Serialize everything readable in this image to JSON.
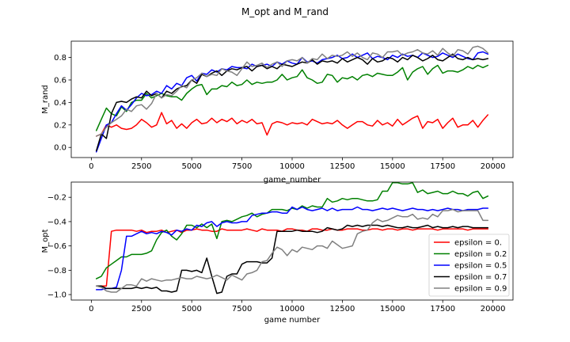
{
  "figure_title": "M_opt and M_rand",
  "chart_data": [
    {
      "type": "line",
      "title": "",
      "xlabel": "game_number",
      "ylabel": "M_rand",
      "xlim": [
        -1000,
        21000
      ],
      "ylim": [
        -0.09,
        0.945
      ],
      "xticks": [
        0,
        2500,
        5000,
        7500,
        10000,
        12500,
        15000,
        17500,
        20000
      ],
      "yticks": [
        0.0,
        0.2,
        0.4,
        0.6,
        0.8
      ],
      "xtick_labels": [
        "0",
        "2500",
        "5000",
        "7500",
        "10000",
        "12500",
        "15000",
        "17500",
        "20000"
      ],
      "ytick_labels": [
        "0.0",
        "0.2",
        "0.4",
        "0.6",
        "0.8"
      ],
      "grid": false,
      "legend": null,
      "x": [
        250,
        500,
        750,
        1000,
        1250,
        1500,
        1750,
        2000,
        2250,
        2500,
        2750,
        3000,
        3250,
        3500,
        3750,
        4000,
        4250,
        4500,
        4750,
        5000,
        5250,
        5500,
        5750,
        6000,
        6250,
        6500,
        6750,
        7000,
        7250,
        7500,
        7750,
        8000,
        8250,
        8500,
        8750,
        9000,
        9250,
        9500,
        9750,
        10000,
        10250,
        10500,
        10750,
        11000,
        11250,
        11500,
        11750,
        12000,
        12250,
        12500,
        12750,
        13000,
        13250,
        13500,
        13750,
        14000,
        14250,
        14500,
        14750,
        15000,
        15250,
        15500,
        15750,
        16000,
        16250,
        16500,
        16750,
        17000,
        17250,
        17500,
        17750,
        18000,
        18250,
        18500,
        18750,
        19000,
        19250,
        19500,
        19750
      ],
      "series": [
        {
          "color": "#ff0000",
          "values": [
            0.1,
            0.12,
            0.2,
            0.18,
            0.2,
            0.17,
            0.16,
            0.17,
            0.2,
            0.25,
            0.22,
            0.18,
            0.2,
            0.31,
            0.21,
            0.24,
            0.17,
            0.21,
            0.17,
            0.22,
            0.25,
            0.21,
            0.22,
            0.26,
            0.22,
            0.25,
            0.23,
            0.26,
            0.21,
            0.24,
            0.22,
            0.25,
            0.21,
            0.22,
            0.11,
            0.21,
            0.23,
            0.22,
            0.2,
            0.22,
            0.21,
            0.22,
            0.2,
            0.25,
            0.23,
            0.21,
            0.22,
            0.21,
            0.24,
            0.2,
            0.17,
            0.2,
            0.23,
            0.23,
            0.2,
            0.19,
            0.24,
            0.2,
            0.22,
            0.19,
            0.25,
            0.2,
            0.23,
            0.26,
            0.28,
            0.17,
            0.23,
            0.22,
            0.25,
            0.17,
            0.22,
            0.26,
            0.18,
            0.2,
            0.2,
            0.24,
            0.18,
            0.24,
            0.29
          ]
        },
        {
          "color": "#008000",
          "values": [
            0.15,
            0.25,
            0.35,
            0.3,
            0.28,
            0.36,
            0.32,
            0.4,
            0.42,
            0.42,
            0.48,
            0.44,
            0.46,
            0.48,
            0.46,
            0.45,
            0.45,
            0.42,
            0.48,
            0.52,
            0.55,
            0.56,
            0.47,
            0.52,
            0.52,
            0.55,
            0.54,
            0.58,
            0.55,
            0.56,
            0.6,
            0.56,
            0.58,
            0.57,
            0.58,
            0.58,
            0.6,
            0.65,
            0.6,
            0.62,
            0.63,
            0.69,
            0.62,
            0.6,
            0.57,
            0.58,
            0.65,
            0.64,
            0.58,
            0.62,
            0.61,
            0.63,
            0.6,
            0.64,
            0.65,
            0.63,
            0.66,
            0.65,
            0.64,
            0.64,
            0.67,
            0.71,
            0.6,
            0.67,
            0.7,
            0.72,
            0.65,
            0.7,
            0.73,
            0.66,
            0.68,
            0.68,
            0.67,
            0.69,
            0.72,
            0.7,
            0.73,
            0.71,
            0.73
          ]
        },
        {
          "color": "#0000ff",
          "values": [
            -0.04,
            0.08,
            0.2,
            0.22,
            0.3,
            0.37,
            0.33,
            0.38,
            0.44,
            0.48,
            0.46,
            0.47,
            0.5,
            0.48,
            0.55,
            0.52,
            0.57,
            0.55,
            0.62,
            0.64,
            0.59,
            0.66,
            0.65,
            0.69,
            0.67,
            0.7,
            0.69,
            0.72,
            0.71,
            0.71,
            0.7,
            0.74,
            0.72,
            0.73,
            0.74,
            0.72,
            0.76,
            0.74,
            0.77,
            0.75,
            0.74,
            0.8,
            0.76,
            0.77,
            0.75,
            0.78,
            0.79,
            0.8,
            0.82,
            0.79,
            0.8,
            0.83,
            0.8,
            0.82,
            0.84,
            0.79,
            0.81,
            0.8,
            0.78,
            0.82,
            0.8,
            0.83,
            0.81,
            0.82,
            0.8,
            0.84,
            0.82,
            0.8,
            0.81,
            0.84,
            0.82,
            0.8,
            0.83,
            0.81,
            0.79,
            0.78,
            0.84,
            0.85,
            0.83
          ]
        },
        {
          "color": "#000000",
          "values": [
            -0.03,
            0.12,
            0.08,
            0.3,
            0.4,
            0.41,
            0.4,
            0.43,
            0.45,
            0.44,
            0.5,
            0.46,
            0.48,
            0.44,
            0.5,
            0.48,
            0.52,
            0.54,
            0.55,
            0.6,
            0.57,
            0.65,
            0.63,
            0.66,
            0.68,
            0.64,
            0.68,
            0.7,
            0.69,
            0.71,
            0.72,
            0.68,
            0.72,
            0.73,
            0.7,
            0.72,
            0.7,
            0.74,
            0.73,
            0.72,
            0.74,
            0.76,
            0.75,
            0.78,
            0.74,
            0.77,
            0.76,
            0.77,
            0.75,
            0.79,
            0.76,
            0.78,
            0.8,
            0.78,
            0.74,
            0.79,
            0.76,
            0.77,
            0.8,
            0.79,
            0.76,
            0.8,
            0.78,
            0.82,
            0.8,
            0.77,
            0.79,
            0.82,
            0.78,
            0.77,
            0.8,
            0.83,
            0.79,
            0.78,
            0.8,
            0.78,
            0.79,
            0.78,
            0.79
          ]
        },
        {
          "color": "#808080",
          "values": [
            0.1,
            0.12,
            0.18,
            0.22,
            0.25,
            0.28,
            0.34,
            0.32,
            0.37,
            0.38,
            0.34,
            0.39,
            0.48,
            0.44,
            0.47,
            0.46,
            0.5,
            0.55,
            0.53,
            0.6,
            0.62,
            0.66,
            0.63,
            0.65,
            0.64,
            0.7,
            0.68,
            0.67,
            0.64,
            0.7,
            0.76,
            0.72,
            0.73,
            0.75,
            0.71,
            0.74,
            0.76,
            0.72,
            0.77,
            0.78,
            0.77,
            0.8,
            0.75,
            0.79,
            0.78,
            0.83,
            0.79,
            0.82,
            0.81,
            0.82,
            0.85,
            0.81,
            0.84,
            0.8,
            0.78,
            0.84,
            0.83,
            0.8,
            0.85,
            0.85,
            0.86,
            0.82,
            0.84,
            0.85,
            0.87,
            0.84,
            0.83,
            0.86,
            0.82,
            0.88,
            0.84,
            0.81,
            0.87,
            0.86,
            0.83,
            0.89,
            0.9,
            0.88,
            0.84
          ]
        }
      ]
    },
    {
      "type": "line",
      "title": "",
      "xlabel": "game number",
      "ylabel": "M_opt",
      "xlim": [
        -1000,
        21000
      ],
      "ylim": [
        -1.045,
        -0.075
      ],
      "xticks": [
        0,
        2500,
        5000,
        7500,
        10000,
        12500,
        15000,
        17500,
        20000
      ],
      "yticks": [
        -1.0,
        -0.8,
        -0.6,
        -0.4,
        -0.2
      ],
      "xtick_labels": [
        "0",
        "2500",
        "5000",
        "7500",
        "10000",
        "12500",
        "15000",
        "17500",
        "20000"
      ],
      "ytick_labels": [
        "−1.0",
        "−0.8",
        "−0.6",
        "−0.4",
        "−0.2"
      ],
      "grid": false,
      "legend": "lower right",
      "x": [
        250,
        500,
        750,
        1000,
        1250,
        1500,
        1750,
        2000,
        2250,
        2500,
        2750,
        3000,
        3250,
        3500,
        3750,
        4000,
        4250,
        4500,
        4750,
        5000,
        5250,
        5500,
        5750,
        6000,
        6250,
        6500,
        6750,
        7000,
        7250,
        7500,
        7750,
        8000,
        8250,
        8500,
        8750,
        9000,
        9250,
        9500,
        9750,
        10000,
        10250,
        10500,
        10750,
        11000,
        11250,
        11500,
        11750,
        12000,
        12250,
        12500,
        12750,
        13000,
        13250,
        13500,
        13750,
        14000,
        14250,
        14500,
        14750,
        15000,
        15250,
        15500,
        15750,
        16000,
        16250,
        16500,
        16750,
        17000,
        17250,
        17500,
        17750,
        18000,
        18250,
        18500,
        18750,
        19000,
        19250,
        19500,
        19750
      ],
      "series": [
        {
          "name": "epsilon = 0.",
          "color": "#ff0000",
          "values": [
            -0.93,
            -0.93,
            -0.93,
            -0.48,
            -0.47,
            -0.47,
            -0.47,
            -0.47,
            -0.48,
            -0.47,
            -0.49,
            -0.48,
            -0.48,
            -0.47,
            -0.49,
            -0.48,
            -0.47,
            -0.49,
            -0.47,
            -0.47,
            -0.46,
            -0.47,
            -0.47,
            -0.48,
            -0.48,
            -0.46,
            -0.47,
            -0.47,
            -0.47,
            -0.47,
            -0.46,
            -0.47,
            -0.48,
            -0.46,
            -0.47,
            -0.47,
            -0.47,
            -0.48,
            -0.46,
            -0.46,
            -0.47,
            -0.47,
            -0.48,
            -0.46,
            -0.46,
            -0.47,
            -0.47,
            -0.46,
            -0.47,
            -0.47,
            -0.46,
            -0.46,
            -0.46,
            -0.47,
            -0.47,
            -0.46,
            -0.46,
            -0.47,
            -0.46,
            -0.46,
            -0.47,
            -0.46,
            -0.46,
            -0.47,
            -0.46,
            -0.46,
            -0.46,
            -0.46,
            -0.47,
            -0.46,
            -0.46,
            -0.46,
            -0.46,
            -0.46,
            -0.47,
            -0.46,
            -0.46,
            -0.46,
            -0.46
          ]
        },
        {
          "name": "epsilon = 0.2",
          "color": "#008000",
          "values": [
            -0.87,
            -0.85,
            -0.78,
            -0.75,
            -0.72,
            -0.69,
            -0.69,
            -0.67,
            -0.67,
            -0.67,
            -0.66,
            -0.64,
            -0.55,
            -0.49,
            -0.47,
            -0.52,
            -0.55,
            -0.5,
            -0.43,
            -0.43,
            -0.45,
            -0.42,
            -0.45,
            -0.42,
            -0.54,
            -0.4,
            -0.39,
            -0.4,
            -0.38,
            -0.36,
            -0.35,
            -0.33,
            -0.36,
            -0.34,
            -0.33,
            -0.3,
            -0.3,
            -0.3,
            -0.31,
            -0.29,
            -0.3,
            -0.27,
            -0.29,
            -0.27,
            -0.28,
            -0.28,
            -0.21,
            -0.24,
            -0.23,
            -0.21,
            -0.22,
            -0.21,
            -0.21,
            -0.22,
            -0.23,
            -0.23,
            -0.22,
            -0.15,
            -0.15,
            -0.08,
            -0.08,
            -0.09,
            -0.09,
            -0.08,
            -0.16,
            -0.14,
            -0.17,
            -0.16,
            -0.15,
            -0.17,
            -0.17,
            -0.15,
            -0.17,
            -0.17,
            -0.19,
            -0.16,
            -0.15,
            -0.21,
            -0.19
          ]
        },
        {
          "name": "epsilon = 0.5",
          "color": "#0000ff",
          "values": [
            -0.96,
            -0.96,
            -0.95,
            -0.95,
            -0.94,
            -0.8,
            -0.52,
            -0.52,
            -0.5,
            -0.48,
            -0.5,
            -0.49,
            -0.5,
            -0.48,
            -0.49,
            -0.51,
            -0.47,
            -0.48,
            -0.46,
            -0.47,
            -0.43,
            -0.44,
            -0.41,
            -0.4,
            -0.44,
            -0.41,
            -0.4,
            -0.41,
            -0.41,
            -0.4,
            -0.4,
            -0.35,
            -0.34,
            -0.33,
            -0.33,
            -0.32,
            -0.32,
            -0.33,
            -0.33,
            -0.28,
            -0.3,
            -0.28,
            -0.3,
            -0.31,
            -0.3,
            -0.29,
            -0.31,
            -0.29,
            -0.31,
            -0.3,
            -0.3,
            -0.3,
            -0.28,
            -0.3,
            -0.3,
            -0.31,
            -0.3,
            -0.29,
            -0.3,
            -0.29,
            -0.3,
            -0.31,
            -0.3,
            -0.29,
            -0.3,
            -0.3,
            -0.31,
            -0.3,
            -0.31,
            -0.3,
            -0.29,
            -0.3,
            -0.3,
            -0.31,
            -0.3,
            -0.3,
            -0.3,
            -0.29,
            -0.29
          ]
        },
        {
          "name": "epsilon = 0.7",
          "color": "#000000",
          "values": [
            -0.93,
            -0.93,
            -0.95,
            -0.95,
            -0.95,
            -0.95,
            -0.95,
            -0.95,
            -0.94,
            -0.95,
            -0.94,
            -0.95,
            -0.94,
            -0.97,
            -0.97,
            -0.98,
            -0.97,
            -0.8,
            -0.8,
            -0.81,
            -0.8,
            -0.82,
            -0.7,
            -0.85,
            -0.99,
            -0.98,
            -0.85,
            -0.83,
            -0.83,
            -0.75,
            -0.73,
            -0.73,
            -0.73,
            -0.74,
            -0.74,
            -0.7,
            -0.48,
            -0.48,
            -0.48,
            -0.48,
            -0.47,
            -0.48,
            -0.48,
            -0.48,
            -0.49,
            -0.48,
            -0.45,
            -0.46,
            -0.47,
            -0.46,
            -0.43,
            -0.44,
            -0.43,
            -0.44,
            -0.43,
            -0.43,
            -0.43,
            -0.44,
            -0.43,
            -0.44,
            -0.45,
            -0.45,
            -0.44,
            -0.45,
            -0.45,
            -0.44,
            -0.43,
            -0.45,
            -0.44,
            -0.45,
            -0.45,
            -0.44,
            -0.45,
            -0.44,
            -0.44,
            -0.45,
            -0.45,
            -0.45,
            -0.45
          ]
        },
        {
          "name": "epsilon = 0.9",
          "color": "#808080",
          "values": [
            -0.93,
            -0.94,
            -0.97,
            -0.98,
            -0.98,
            -0.95,
            -0.92,
            -0.92,
            -0.93,
            -0.87,
            -0.89,
            -0.87,
            -0.88,
            -0.89,
            -0.88,
            -0.88,
            -0.87,
            -0.86,
            -0.87,
            -0.87,
            -0.85,
            -0.86,
            -0.87,
            -0.86,
            -0.84,
            -0.86,
            -0.88,
            -0.84,
            -0.86,
            -0.88,
            -0.83,
            -0.82,
            -0.8,
            -0.73,
            -0.72,
            -0.66,
            -0.61,
            -0.63,
            -0.68,
            -0.63,
            -0.65,
            -0.61,
            -0.62,
            -0.63,
            -0.6,
            -0.6,
            -0.62,
            -0.56,
            -0.59,
            -0.62,
            -0.61,
            -0.6,
            -0.5,
            -0.48,
            -0.47,
            -0.41,
            -0.38,
            -0.4,
            -0.39,
            -0.37,
            -0.35,
            -0.36,
            -0.36,
            -0.34,
            -0.38,
            -0.37,
            -0.38,
            -0.34,
            -0.36,
            -0.31,
            -0.31,
            -0.3,
            -0.32,
            -0.31,
            -0.31,
            -0.31,
            -0.31,
            -0.39,
            -0.39
          ]
        }
      ]
    }
  ]
}
